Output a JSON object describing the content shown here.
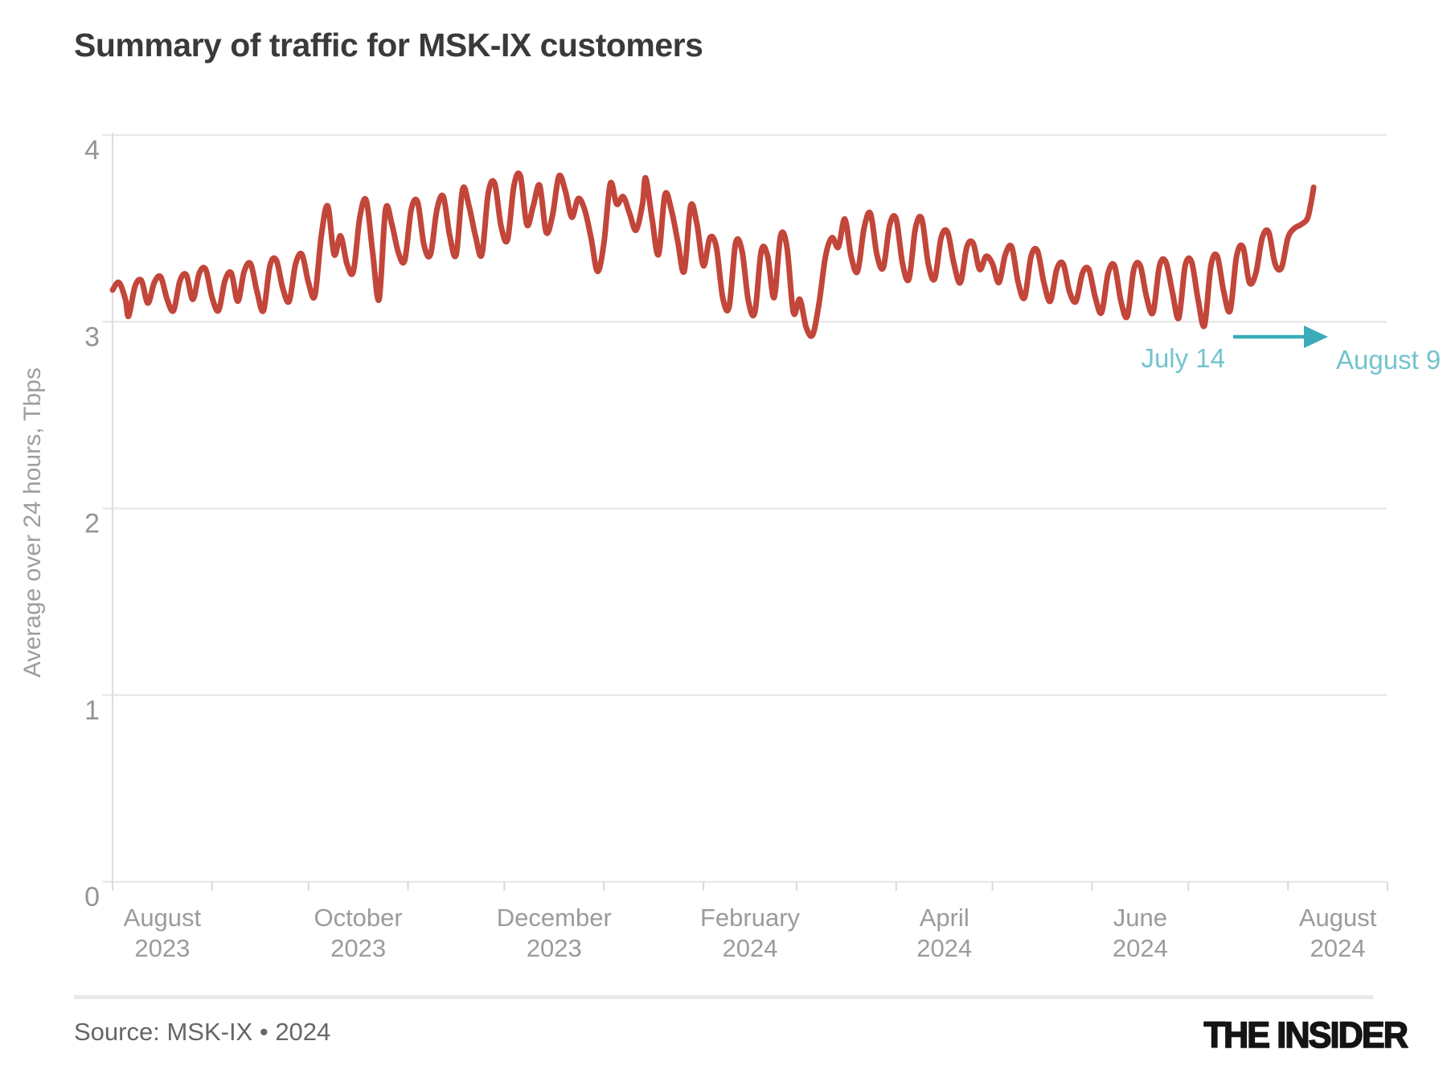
{
  "header": {
    "title": "Summary of traffic for MSK-IX customers"
  },
  "footer": {
    "source": "Source: MSK-IX • 2024",
    "logo": "THE INSIDER"
  },
  "colors": {
    "line": "#c2463a",
    "annotation_arrow": "#3aacb9",
    "annotation_text": "#72c4cd",
    "grid": "#e9e9e9",
    "axis": "#dedede",
    "tick": "#d9d9d9",
    "axis_text": "#949494"
  },
  "chart_data": {
    "type": "line",
    "title": "Summary of traffic for MSK-IX customers",
    "xlabel": "",
    "ylabel": "Average over 24 hours, Tbps",
    "ylim": [
      0,
      4
    ],
    "yticks": [
      0,
      1,
      2,
      3,
      4
    ],
    "grid": "horizontal-only",
    "legend": "none",
    "x_axis": {
      "start_date": "2023-08-01",
      "end_date": "2024-09-01",
      "total_days": 397,
      "month_tick_days": [
        0,
        31,
        61,
        92,
        122,
        153,
        184,
        213,
        244,
        274,
        305,
        335,
        366,
        397
      ],
      "labels": [
        {
          "day": 15.5,
          "line1": "August",
          "line2": "2023"
        },
        {
          "day": 76.5,
          "line1": "October",
          "line2": "2023"
        },
        {
          "day": 137.5,
          "line1": "December",
          "line2": "2023"
        },
        {
          "day": 198.5,
          "line1": "February",
          "line2": "2024"
        },
        {
          "day": 259,
          "line1": "April",
          "line2": "2024"
        },
        {
          "day": 320,
          "line1": "June",
          "line2": "2024"
        },
        {
          "day": 381.5,
          "line1": "August",
          "line2": "2024"
        }
      ]
    },
    "series": [
      {
        "name": "MSK-IX customer traffic, Tbps (daily average)",
        "color": "#c2463a",
        "points": [
          [
            0,
            3.17
          ],
          [
            2,
            3.21
          ],
          [
            4,
            3.12
          ],
          [
            5,
            3.03
          ],
          [
            7,
            3.19
          ],
          [
            9,
            3.22
          ],
          [
            11,
            3.1
          ],
          [
            13,
            3.21
          ],
          [
            15,
            3.24
          ],
          [
            17,
            3.12
          ],
          [
            19,
            3.06
          ],
          [
            21,
            3.22
          ],
          [
            23,
            3.25
          ],
          [
            25,
            3.12
          ],
          [
            27,
            3.26
          ],
          [
            29,
            3.28
          ],
          [
            31,
            3.13
          ],
          [
            33,
            3.06
          ],
          [
            35,
            3.22
          ],
          [
            37,
            3.26
          ],
          [
            39,
            3.11
          ],
          [
            41,
            3.27
          ],
          [
            43,
            3.31
          ],
          [
            45,
            3.16
          ],
          [
            47,
            3.06
          ],
          [
            49,
            3.3
          ],
          [
            51,
            3.33
          ],
          [
            53,
            3.18
          ],
          [
            55,
            3.11
          ],
          [
            57,
            3.31
          ],
          [
            59,
            3.36
          ],
          [
            61,
            3.21
          ],
          [
            63,
            3.14
          ],
          [
            65,
            3.46
          ],
          [
            67,
            3.62
          ],
          [
            69,
            3.36
          ],
          [
            71,
            3.46
          ],
          [
            73,
            3.31
          ],
          [
            75,
            3.27
          ],
          [
            77,
            3.56
          ],
          [
            79,
            3.65
          ],
          [
            81,
            3.37
          ],
          [
            83,
            3.12
          ],
          [
            85,
            3.6
          ],
          [
            87,
            3.52
          ],
          [
            89,
            3.37
          ],
          [
            91,
            3.33
          ],
          [
            93,
            3.6
          ],
          [
            95,
            3.64
          ],
          [
            97,
            3.41
          ],
          [
            99,
            3.36
          ],
          [
            101,
            3.6
          ],
          [
            103,
            3.67
          ],
          [
            105,
            3.46
          ],
          [
            107,
            3.36
          ],
          [
            109,
            3.71
          ],
          [
            111,
            3.62
          ],
          [
            113,
            3.46
          ],
          [
            115,
            3.36
          ],
          [
            117,
            3.69
          ],
          [
            119,
            3.74
          ],
          [
            121,
            3.51
          ],
          [
            123,
            3.44
          ],
          [
            125,
            3.73
          ],
          [
            127,
            3.78
          ],
          [
            129,
            3.52
          ],
          [
            131,
            3.62
          ],
          [
            133,
            3.73
          ],
          [
            135,
            3.48
          ],
          [
            137,
            3.57
          ],
          [
            139,
            3.78
          ],
          [
            141,
            3.7
          ],
          [
            143,
            3.56
          ],
          [
            145,
            3.66
          ],
          [
            147,
            3.6
          ],
          [
            149,
            3.45
          ],
          [
            151,
            3.27
          ],
          [
            153,
            3.42
          ],
          [
            155,
            3.74
          ],
          [
            157,
            3.63
          ],
          [
            159,
            3.67
          ],
          [
            161,
            3.58
          ],
          [
            163,
            3.49
          ],
          [
            165,
            3.63
          ],
          [
            166,
            3.77
          ],
          [
            168,
            3.55
          ],
          [
            170,
            3.36
          ],
          [
            172,
            3.68
          ],
          [
            174,
            3.6
          ],
          [
            176,
            3.43
          ],
          [
            178,
            3.27
          ],
          [
            180,
            3.62
          ],
          [
            182,
            3.52
          ],
          [
            184,
            3.3
          ],
          [
            186,
            3.45
          ],
          [
            188,
            3.4
          ],
          [
            190,
            3.13
          ],
          [
            192,
            3.08
          ],
          [
            194,
            3.42
          ],
          [
            196,
            3.38
          ],
          [
            198,
            3.11
          ],
          [
            200,
            3.05
          ],
          [
            202,
            3.38
          ],
          [
            204,
            3.35
          ],
          [
            206,
            3.13
          ],
          [
            208,
            3.46
          ],
          [
            210,
            3.4
          ],
          [
            212,
            3.05
          ],
          [
            214,
            3.12
          ],
          [
            216,
            2.97
          ],
          [
            218,
            2.93
          ],
          [
            220,
            3.1
          ],
          [
            222,
            3.35
          ],
          [
            224,
            3.45
          ],
          [
            226,
            3.4
          ],
          [
            228,
            3.55
          ],
          [
            230,
            3.35
          ],
          [
            232,
            3.27
          ],
          [
            234,
            3.5
          ],
          [
            236,
            3.58
          ],
          [
            238,
            3.36
          ],
          [
            240,
            3.29
          ],
          [
            242,
            3.52
          ],
          [
            244,
            3.55
          ],
          [
            246,
            3.31
          ],
          [
            248,
            3.23
          ],
          [
            250,
            3.5
          ],
          [
            252,
            3.55
          ],
          [
            254,
            3.31
          ],
          [
            256,
            3.23
          ],
          [
            258,
            3.45
          ],
          [
            260,
            3.48
          ],
          [
            262,
            3.31
          ],
          [
            264,
            3.21
          ],
          [
            266,
            3.4
          ],
          [
            268,
            3.42
          ],
          [
            270,
            3.28
          ],
          [
            272,
            3.35
          ],
          [
            274,
            3.31
          ],
          [
            276,
            3.21
          ],
          [
            278,
            3.36
          ],
          [
            280,
            3.4
          ],
          [
            282,
            3.21
          ],
          [
            284,
            3.13
          ],
          [
            286,
            3.35
          ],
          [
            288,
            3.38
          ],
          [
            290,
            3.21
          ],
          [
            292,
            3.11
          ],
          [
            294,
            3.28
          ],
          [
            296,
            3.31
          ],
          [
            298,
            3.16
          ],
          [
            300,
            3.11
          ],
          [
            302,
            3.26
          ],
          [
            304,
            3.28
          ],
          [
            306,
            3.13
          ],
          [
            308,
            3.05
          ],
          [
            310,
            3.26
          ],
          [
            312,
            3.3
          ],
          [
            314,
            3.11
          ],
          [
            316,
            3.03
          ],
          [
            318,
            3.28
          ],
          [
            320,
            3.3
          ],
          [
            322,
            3.13
          ],
          [
            324,
            3.05
          ],
          [
            326,
            3.3
          ],
          [
            328,
            3.32
          ],
          [
            330,
            3.16
          ],
          [
            332,
            3.02
          ],
          [
            334,
            3.3
          ],
          [
            336,
            3.32
          ],
          [
            338,
            3.12
          ],
          [
            340,
            2.98
          ],
          [
            342,
            3.3
          ],
          [
            344,
            3.35
          ],
          [
            346,
            3.16
          ],
          [
            348,
            3.06
          ],
          [
            350,
            3.35
          ],
          [
            352,
            3.4
          ],
          [
            354,
            3.21
          ],
          [
            356,
            3.26
          ],
          [
            358,
            3.45
          ],
          [
            360,
            3.48
          ],
          [
            362,
            3.31
          ],
          [
            364,
            3.29
          ],
          [
            366,
            3.45
          ],
          [
            368,
            3.5
          ],
          [
            370,
            3.52
          ],
          [
            372,
            3.55
          ],
          [
            373,
            3.62
          ],
          [
            374,
            3.72
          ]
        ]
      }
    ],
    "annotation": {
      "from_label": "July 14",
      "to_label": "August 9",
      "from_day": 348,
      "to_day": 374,
      "arrow_color": "#3aacb9",
      "text_color": "#72c4cd"
    }
  }
}
